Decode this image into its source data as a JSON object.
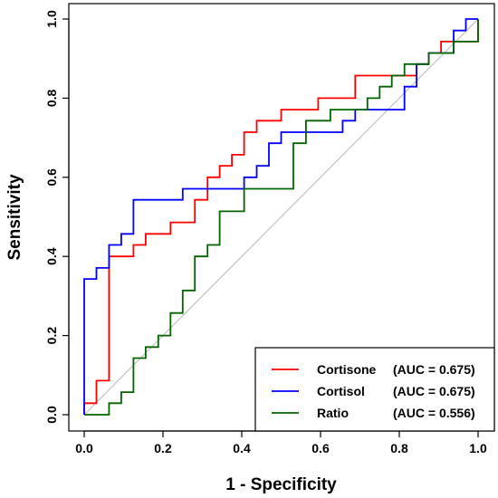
{
  "chart_data": {
    "type": "line",
    "xlabel": "1 - Specificity",
    "ylabel": "Sensitivity",
    "xlim": [
      0,
      1
    ],
    "ylim": [
      0,
      1
    ],
    "xticks": [
      "0.0",
      "0.2",
      "0.4",
      "0.6",
      "0.8",
      "1.0"
    ],
    "yticks": [
      "0.0",
      "0.2",
      "0.4",
      "0.6",
      "0.8",
      "1.0"
    ],
    "grid": false,
    "legend_position": "bottom-right",
    "diagonal_reference": true,
    "series": [
      {
        "name": "Cortisone",
        "auc_label": "(AUC = 0.675)",
        "color": "#ff0000",
        "points": [
          [
            0,
            0
          ],
          [
            0,
            0.029
          ],
          [
            0.031,
            0.029
          ],
          [
            0.031,
            0.086
          ],
          [
            0.063,
            0.086
          ],
          [
            0.063,
            0.4
          ],
          [
            0.125,
            0.4
          ],
          [
            0.125,
            0.429
          ],
          [
            0.156,
            0.429
          ],
          [
            0.156,
            0.457
          ],
          [
            0.219,
            0.457
          ],
          [
            0.219,
            0.486
          ],
          [
            0.281,
            0.486
          ],
          [
            0.281,
            0.543
          ],
          [
            0.313,
            0.543
          ],
          [
            0.313,
            0.6
          ],
          [
            0.344,
            0.6
          ],
          [
            0.344,
            0.629
          ],
          [
            0.375,
            0.629
          ],
          [
            0.375,
            0.657
          ],
          [
            0.406,
            0.657
          ],
          [
            0.406,
            0.714
          ],
          [
            0.438,
            0.714
          ],
          [
            0.438,
            0.743
          ],
          [
            0.5,
            0.743
          ],
          [
            0.5,
            0.771
          ],
          [
            0.594,
            0.771
          ],
          [
            0.594,
            0.8
          ],
          [
            0.688,
            0.8
          ],
          [
            0.688,
            0.857
          ],
          [
            0.844,
            0.857
          ],
          [
            0.844,
            0.886
          ],
          [
            0.875,
            0.886
          ],
          [
            0.875,
            0.914
          ],
          [
            0.906,
            0.914
          ],
          [
            0.906,
            0.943
          ],
          [
            1,
            0.943
          ],
          [
            1,
            1
          ]
        ]
      },
      {
        "name": "Cortisol",
        "auc_label": "(AUC = 0.675)",
        "color": "#0000ff",
        "points": [
          [
            0,
            0
          ],
          [
            0,
            0.343
          ],
          [
            0.031,
            0.343
          ],
          [
            0.031,
            0.371
          ],
          [
            0.063,
            0.371
          ],
          [
            0.063,
            0.429
          ],
          [
            0.094,
            0.429
          ],
          [
            0.094,
            0.457
          ],
          [
            0.125,
            0.457
          ],
          [
            0.125,
            0.543
          ],
          [
            0.25,
            0.543
          ],
          [
            0.25,
            0.571
          ],
          [
            0.406,
            0.571
          ],
          [
            0.406,
            0.6
          ],
          [
            0.438,
            0.6
          ],
          [
            0.438,
            0.629
          ],
          [
            0.469,
            0.629
          ],
          [
            0.469,
            0.686
          ],
          [
            0.5,
            0.686
          ],
          [
            0.5,
            0.714
          ],
          [
            0.656,
            0.714
          ],
          [
            0.656,
            0.743
          ],
          [
            0.688,
            0.743
          ],
          [
            0.688,
            0.771
          ],
          [
            0.813,
            0.771
          ],
          [
            0.813,
            0.829
          ],
          [
            0.844,
            0.829
          ],
          [
            0.844,
            0.886
          ],
          [
            0.875,
            0.886
          ],
          [
            0.875,
            0.914
          ],
          [
            0.938,
            0.914
          ],
          [
            0.938,
            0.971
          ],
          [
            0.969,
            0.971
          ],
          [
            0.969,
            1
          ],
          [
            1,
            1
          ]
        ]
      },
      {
        "name": "Ratio",
        "auc_label": "(AUC = 0.556)",
        "color": "#006400",
        "points": [
          [
            0,
            0
          ],
          [
            0.063,
            0
          ],
          [
            0.063,
            0.029
          ],
          [
            0.094,
            0.029
          ],
          [
            0.094,
            0.057
          ],
          [
            0.125,
            0.057
          ],
          [
            0.125,
            0.143
          ],
          [
            0.156,
            0.143
          ],
          [
            0.156,
            0.171
          ],
          [
            0.188,
            0.171
          ],
          [
            0.188,
            0.2
          ],
          [
            0.219,
            0.2
          ],
          [
            0.219,
            0.257
          ],
          [
            0.25,
            0.257
          ],
          [
            0.25,
            0.314
          ],
          [
            0.281,
            0.314
          ],
          [
            0.281,
            0.4
          ],
          [
            0.313,
            0.4
          ],
          [
            0.313,
            0.429
          ],
          [
            0.344,
            0.429
          ],
          [
            0.344,
            0.514
          ],
          [
            0.406,
            0.514
          ],
          [
            0.406,
            0.571
          ],
          [
            0.531,
            0.571
          ],
          [
            0.531,
            0.686
          ],
          [
            0.563,
            0.686
          ],
          [
            0.563,
            0.743
          ],
          [
            0.625,
            0.743
          ],
          [
            0.625,
            0.771
          ],
          [
            0.719,
            0.771
          ],
          [
            0.719,
            0.8
          ],
          [
            0.75,
            0.8
          ],
          [
            0.75,
            0.829
          ],
          [
            0.781,
            0.829
          ],
          [
            0.781,
            0.857
          ],
          [
            0.813,
            0.857
          ],
          [
            0.813,
            0.886
          ],
          [
            0.875,
            0.886
          ],
          [
            0.875,
            0.914
          ],
          [
            0.938,
            0.914
          ],
          [
            0.938,
            0.943
          ],
          [
            1,
            0.943
          ],
          [
            1,
            1
          ]
        ]
      }
    ]
  }
}
